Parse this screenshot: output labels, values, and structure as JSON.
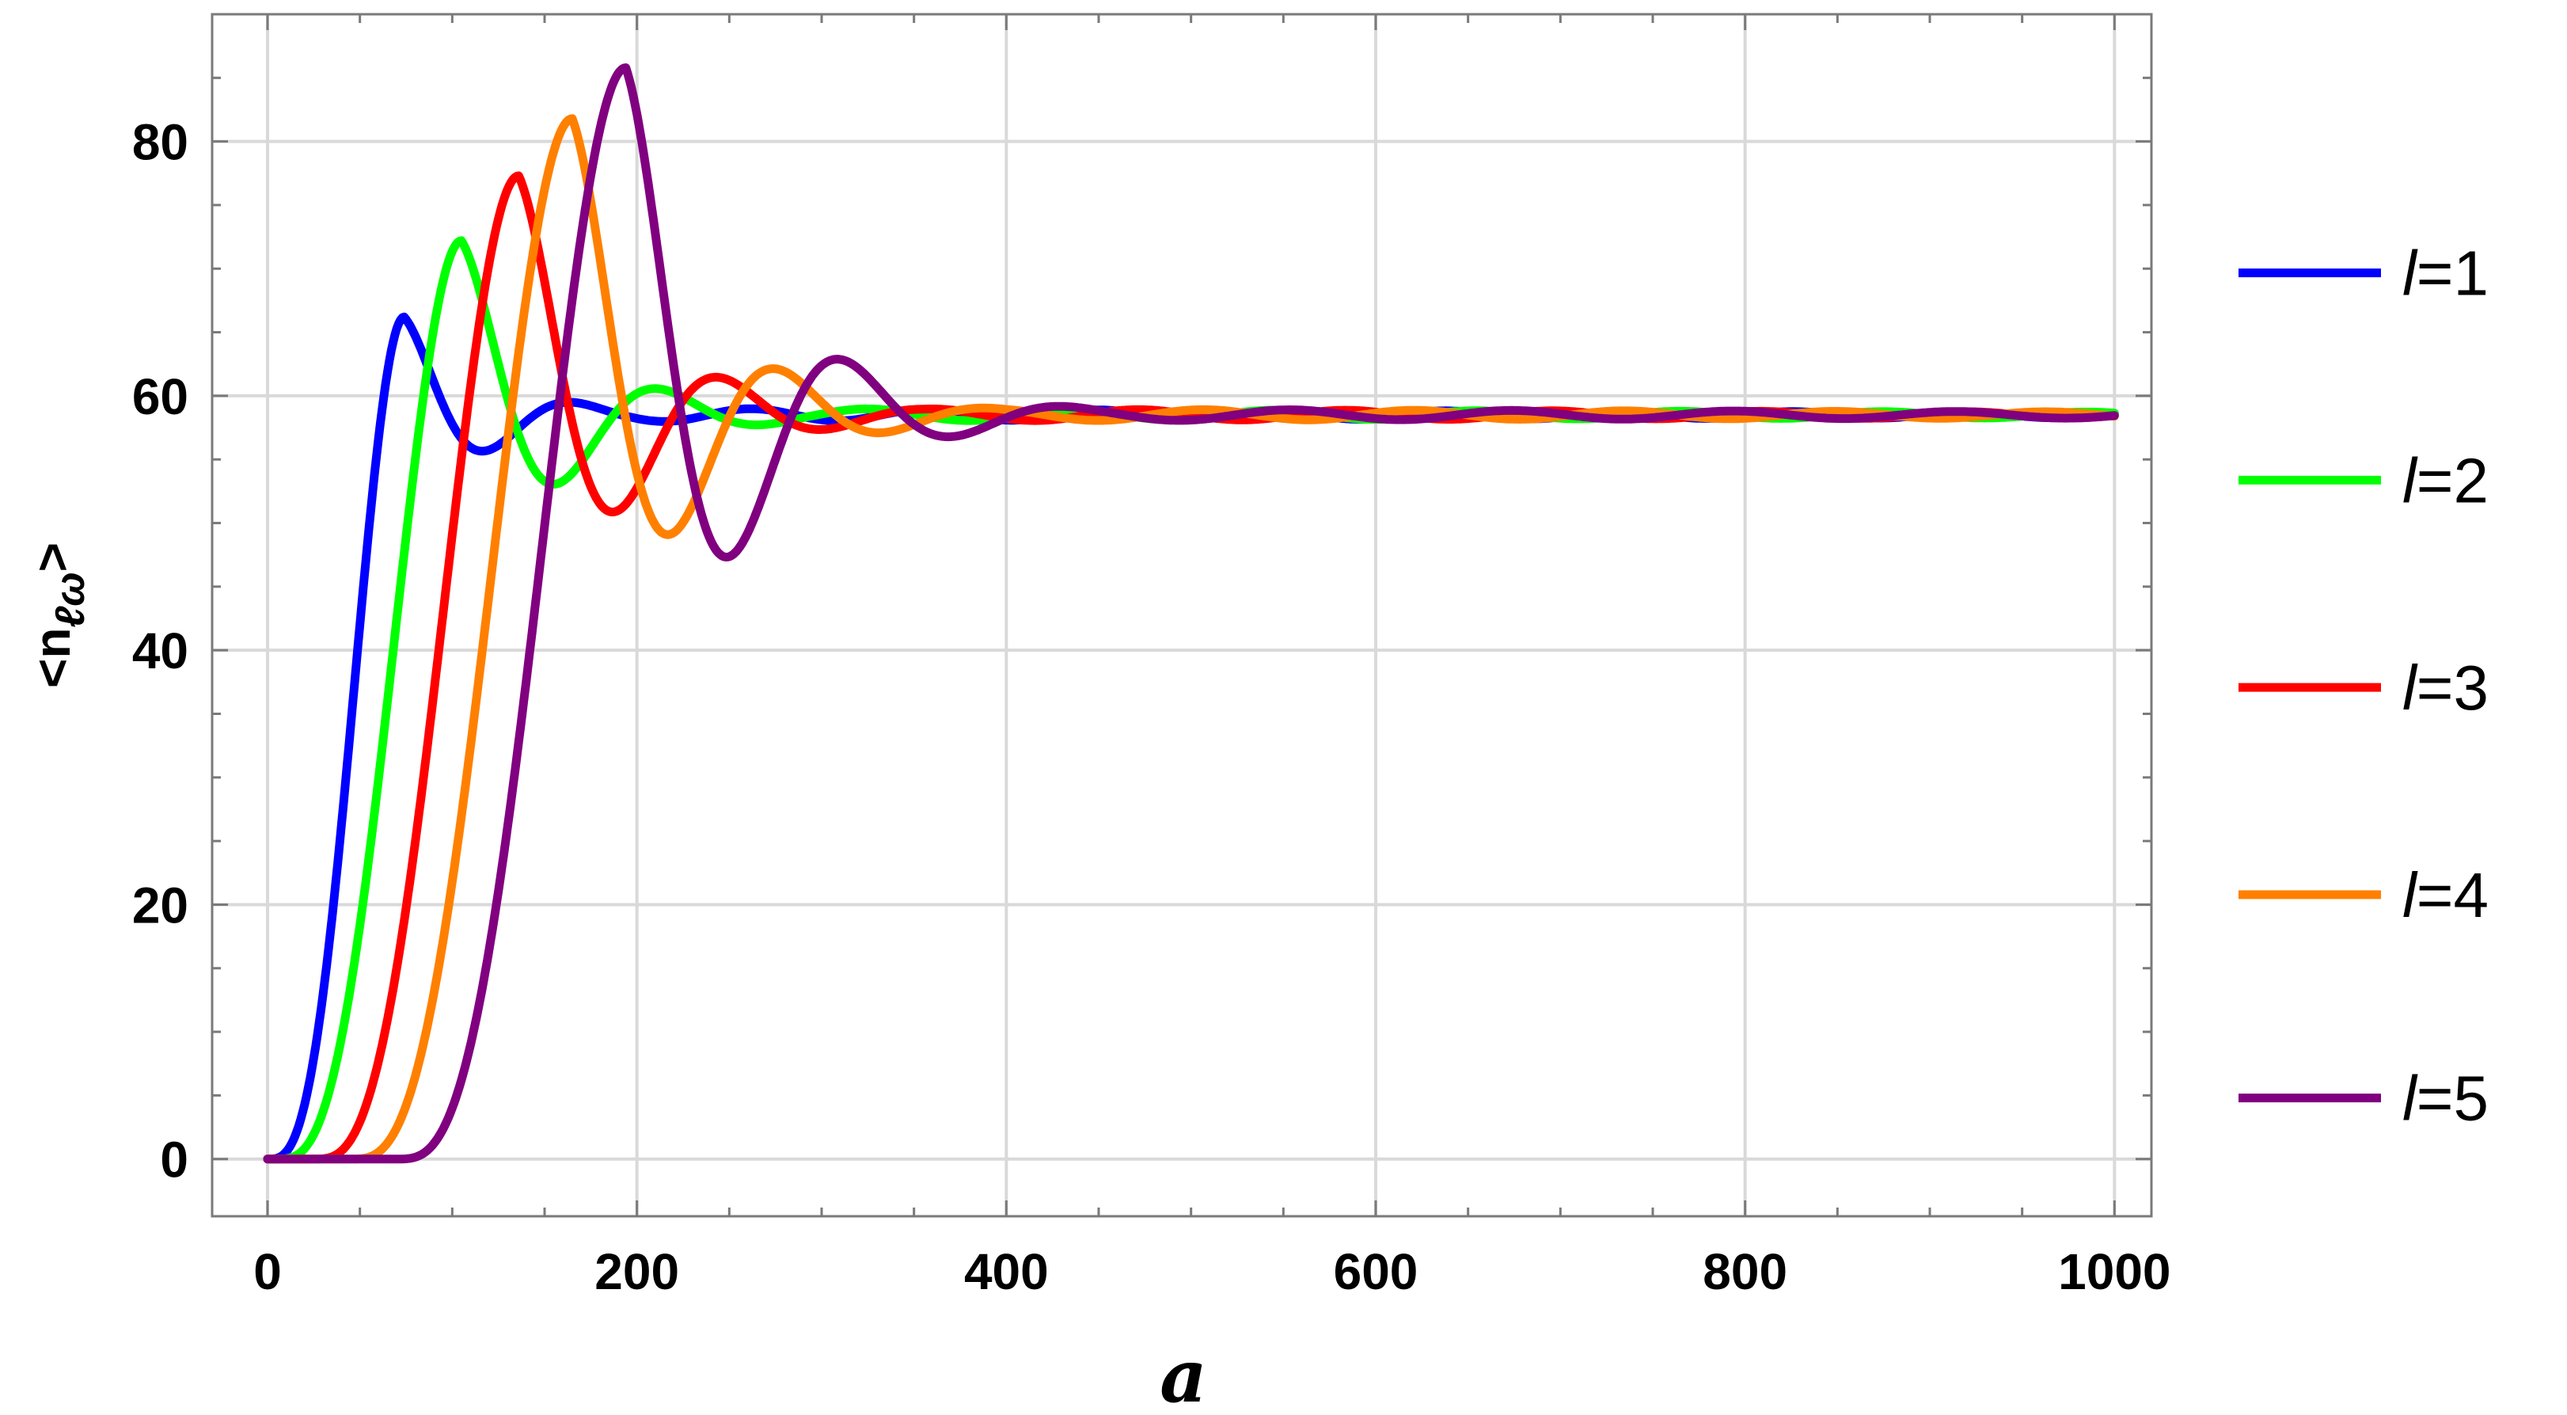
{
  "chart_data": {
    "type": "line",
    "title": "",
    "xlabel": "a",
    "ylabel": "<n",
    "ylabel_subscript": "ℓω",
    "ylabel_close": ">",
    "xlim": [
      -30,
      1020
    ],
    "ylim": [
      -4.5,
      90
    ],
    "xticks": [
      0,
      200,
      400,
      600,
      800,
      1000
    ],
    "yticks": [
      0,
      20,
      40,
      60,
      80
    ],
    "xtick_labels": [
      "0",
      "200",
      "400",
      "600",
      "800",
      "1000"
    ],
    "ytick_labels": [
      "0",
      "20",
      "40",
      "60",
      "80"
    ],
    "grid": true,
    "legend_position": "right",
    "series": [
      {
        "name": "l=1",
        "color": "#0000ff",
        "rise_start": 0,
        "peak_x": 74,
        "peak_y": 66.2,
        "baseline": 58.5,
        "trough_x": 121,
        "trough_y": 55.8,
        "period": 90,
        "x": [
          0,
          20,
          40,
          60,
          74,
          100,
          121,
          150,
          200,
          250,
          300,
          350,
          400,
          500,
          600,
          700,
          800,
          900,
          1000
        ],
        "y": [
          0,
          14,
          40,
          60,
          66.2,
          62,
          55.8,
          59.8,
          57.8,
          59.0,
          58.2,
          58.6,
          58.4,
          58.5,
          58.5,
          58.5,
          58.5,
          58.5,
          58.5
        ]
      },
      {
        "name": "l=2",
        "color": "#00ff00",
        "rise_start": 5,
        "peak_x": 105,
        "peak_y": 72.2,
        "baseline": 58.5,
        "trough_x": 160,
        "trough_y": 53.3,
        "period": 90,
        "x": [
          0,
          40,
          60,
          80,
          105,
          130,
          160,
          205,
          250,
          295,
          340,
          400,
          500,
          600,
          700,
          800,
          900,
          1000
        ],
        "y": [
          0,
          5,
          25,
          55,
          72.2,
          65,
          53.3,
          61.8,
          56.5,
          60.0,
          57.5,
          58.8,
          58.4,
          58.5,
          58.5,
          58.5,
          58.5,
          58.5
        ]
      },
      {
        "name": "l=3",
        "color": "#ff0000",
        "rise_start": 25,
        "peak_x": 136,
        "peak_y": 77.3,
        "baseline": 58.5,
        "trough_x": 192,
        "trough_y": 51.2,
        "period": 90,
        "x": [
          0,
          60,
          80,
          110,
          136,
          165,
          192,
          236,
          280,
          326,
          370,
          410,
          500,
          600,
          700,
          800,
          900,
          1000
        ],
        "y": [
          0,
          4,
          20,
          55,
          77.3,
          66,
          51.2,
          63.6,
          55.5,
          61.0,
          56.5,
          59.5,
          58.7,
          58.6,
          58.5,
          58.5,
          58.5,
          58.5
        ]
      },
      {
        "name": "l=4",
        "color": "#ff8000",
        "rise_start": 45,
        "peak_x": 165,
        "peak_y": 81.8,
        "baseline": 58.5,
        "trough_x": 222,
        "trough_y": 49.5,
        "period": 90,
        "x": [
          0,
          80,
          110,
          140,
          165,
          195,
          222,
          270,
          318,
          365,
          410,
          455,
          500,
          545,
          590,
          635,
          680,
          725,
          770,
          815,
          860,
          905,
          950,
          1000
        ],
        "y": [
          0,
          3,
          22,
          60,
          81.8,
          66,
          49.5,
          65.3,
          54.5,
          61.8,
          56.0,
          60.5,
          57.3,
          59.6,
          58.0,
          59.0,
          58.2,
          58.8,
          58.3,
          58.7,
          58.4,
          58.6,
          58.5,
          58.5
        ]
      },
      {
        "name": "l=5",
        "color": "#800080",
        "rise_start": 70,
        "peak_x": 194,
        "peak_y": 85.8,
        "baseline": 58.5,
        "trough_x": 254,
        "trough_y": 47.8,
        "period": 90,
        "x": [
          0,
          100,
          140,
          170,
          194,
          225,
          254,
          305,
          352,
          400,
          445,
          490,
          535,
          580,
          625,
          670,
          715,
          760,
          805,
          850,
          895,
          940,
          1000
        ],
        "y": [
          0,
          1.5,
          20,
          62,
          85.8,
          66,
          47.8,
          67.0,
          53.3,
          63.0,
          55.3,
          61.4,
          56.3,
          60.5,
          57.2,
          60.0,
          57.8,
          59.6,
          58.0,
          59.3,
          58.2,
          59.2,
          58.8
        ]
      }
    ]
  }
}
